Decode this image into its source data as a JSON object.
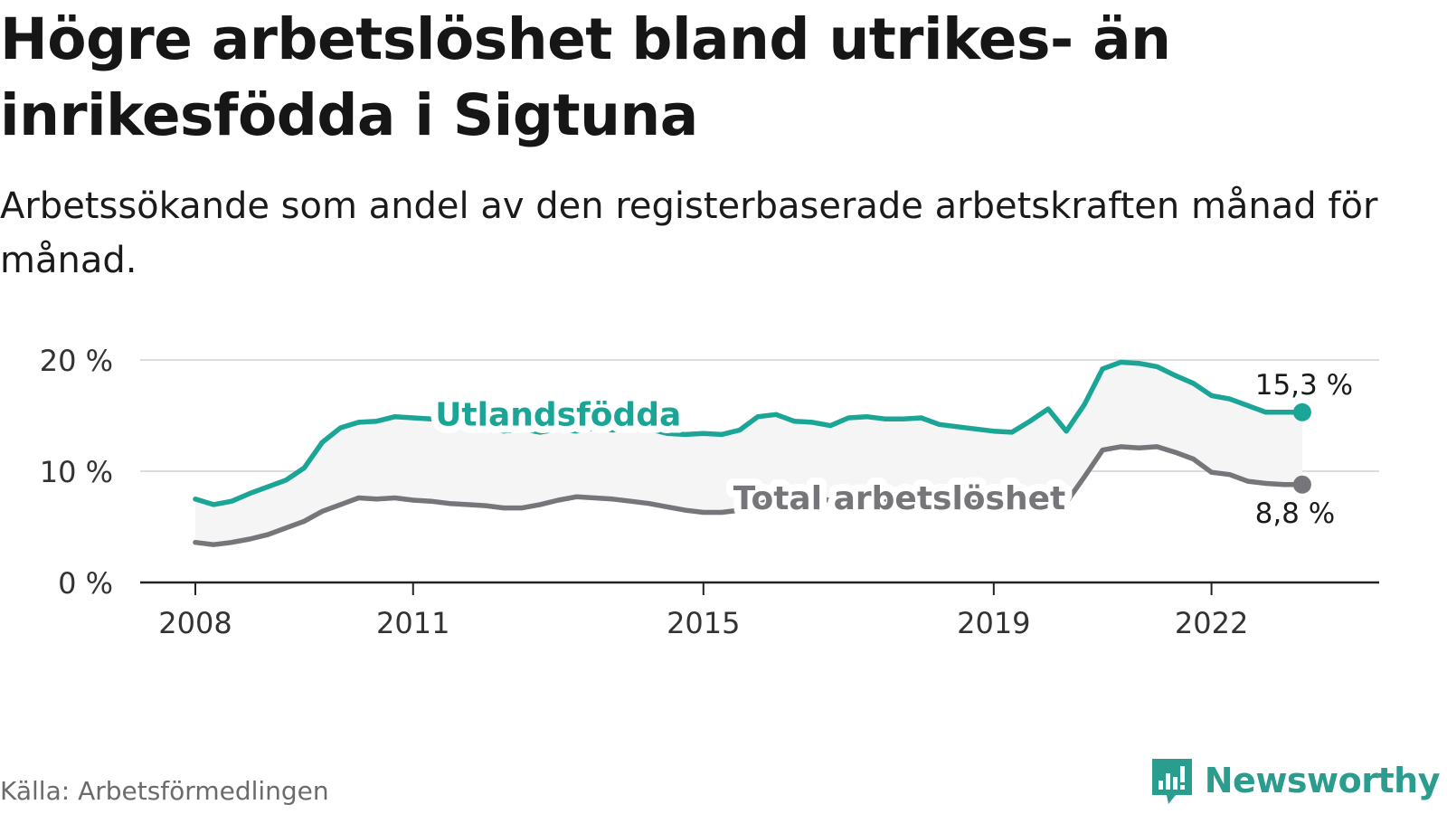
{
  "title": "Högre arbetslöshet bland utrikes- än inrikesfödda i Sigtuna",
  "subtitle": "Arbetssökande som andel av den registerbaserade arbetskraften månad för månad.",
  "source": "Källa: Arbetsförmedlingen",
  "brand": {
    "name": "Newsworthy",
    "icon": "newsworthy-logo-icon"
  },
  "colors": {
    "foreign": "#1aa596",
    "total": "#76767a",
    "band": "#f5f5f5",
    "grid": "#dcdcdc",
    "axis": "#222222"
  },
  "chart_data": {
    "type": "line",
    "title": "Högre arbetslöshet bland utrikes- än inrikesfödda i Sigtuna",
    "xlabel": "",
    "ylabel": "",
    "xlim": [
      2008,
      2023.6
    ],
    "ylim": [
      0,
      20
    ],
    "x_ticks": [
      {
        "value": 2008,
        "label": "2008"
      },
      {
        "value": 2011,
        "label": "2011"
      },
      {
        "value": 2015,
        "label": "2015"
      },
      {
        "value": 2019,
        "label": "2019"
      },
      {
        "value": 2022,
        "label": "2022"
      }
    ],
    "y_ticks": [
      {
        "value": 0,
        "label": "0 %"
      },
      {
        "value": 10,
        "label": "10 %"
      },
      {
        "value": 20,
        "label": "20 %"
      }
    ],
    "series": [
      {
        "name": "Utlandsfödda",
        "label": "Utlandsfödda",
        "end_label": "15,3 %",
        "points": [
          [
            2008.0,
            7.5
          ],
          [
            2008.25,
            7.0
          ],
          [
            2008.5,
            7.3
          ],
          [
            2008.75,
            8.0
          ],
          [
            2009.0,
            8.6
          ],
          [
            2009.25,
            9.2
          ],
          [
            2009.5,
            10.3
          ],
          [
            2009.75,
            12.6
          ],
          [
            2010.0,
            13.9
          ],
          [
            2010.25,
            14.4
          ],
          [
            2010.5,
            14.5
          ],
          [
            2010.75,
            14.9
          ],
          [
            2011.0,
            14.8
          ],
          [
            2011.25,
            14.7
          ],
          [
            2011.5,
            14.3
          ],
          [
            2011.75,
            14.0
          ],
          [
            2012.0,
            14.1
          ],
          [
            2012.25,
            13.6
          ],
          [
            2012.5,
            13.8
          ],
          [
            2012.75,
            13.5
          ],
          [
            2013.0,
            13.8
          ],
          [
            2013.25,
            13.6
          ],
          [
            2013.5,
            13.9
          ],
          [
            2013.75,
            13.7
          ],
          [
            2014.0,
            13.9
          ],
          [
            2014.25,
            13.8
          ],
          [
            2014.5,
            13.4
          ],
          [
            2014.75,
            13.3
          ],
          [
            2015.0,
            13.4
          ],
          [
            2015.25,
            13.3
          ],
          [
            2015.5,
            13.7
          ],
          [
            2015.75,
            14.9
          ],
          [
            2016.0,
            15.1
          ],
          [
            2016.25,
            14.5
          ],
          [
            2016.5,
            14.4
          ],
          [
            2016.75,
            14.1
          ],
          [
            2017.0,
            14.8
          ],
          [
            2017.25,
            14.9
          ],
          [
            2017.5,
            14.7
          ],
          [
            2017.75,
            14.7
          ],
          [
            2018.0,
            14.8
          ],
          [
            2018.25,
            14.2
          ],
          [
            2018.5,
            14.0
          ],
          [
            2018.75,
            13.8
          ],
          [
            2019.0,
            13.6
          ],
          [
            2019.25,
            13.5
          ],
          [
            2019.5,
            14.5
          ],
          [
            2019.75,
            15.6
          ],
          [
            2020.0,
            13.6
          ],
          [
            2020.25,
            16.0
          ],
          [
            2020.5,
            19.2
          ],
          [
            2020.75,
            19.8
          ],
          [
            2021.0,
            19.7
          ],
          [
            2021.25,
            19.4
          ],
          [
            2021.5,
            18.6
          ],
          [
            2021.75,
            17.9
          ],
          [
            2022.0,
            16.8
          ],
          [
            2022.25,
            16.5
          ],
          [
            2022.5,
            15.9
          ],
          [
            2022.75,
            15.3
          ],
          [
            2023.0,
            15.3
          ],
          [
            2023.25,
            15.3
          ]
        ]
      },
      {
        "name": "Total arbetslöshet",
        "label": "Total arbetslöshet",
        "end_label": "8,8 %",
        "points": [
          [
            2008.0,
            3.6
          ],
          [
            2008.25,
            3.4
          ],
          [
            2008.5,
            3.6
          ],
          [
            2008.75,
            3.9
          ],
          [
            2009.0,
            4.3
          ],
          [
            2009.25,
            4.9
          ],
          [
            2009.5,
            5.5
          ],
          [
            2009.75,
            6.4
          ],
          [
            2010.0,
            7.0
          ],
          [
            2010.25,
            7.6
          ],
          [
            2010.5,
            7.5
          ],
          [
            2010.75,
            7.6
          ],
          [
            2011.0,
            7.4
          ],
          [
            2011.25,
            7.3
          ],
          [
            2011.5,
            7.1
          ],
          [
            2011.75,
            7.0
          ],
          [
            2012.0,
            6.9
          ],
          [
            2012.25,
            6.7
          ],
          [
            2012.5,
            6.7
          ],
          [
            2012.75,
            7.0
          ],
          [
            2013.0,
            7.4
          ],
          [
            2013.25,
            7.7
          ],
          [
            2013.5,
            7.6
          ],
          [
            2013.75,
            7.5
          ],
          [
            2014.0,
            7.3
          ],
          [
            2014.25,
            7.1
          ],
          [
            2014.5,
            6.8
          ],
          [
            2014.75,
            6.5
          ],
          [
            2015.0,
            6.3
          ],
          [
            2015.25,
            6.3
          ],
          [
            2015.5,
            6.5
          ],
          [
            2015.75,
            7.0
          ],
          [
            2016.0,
            7.6
          ],
          [
            2016.25,
            7.6
          ],
          [
            2016.5,
            7.5
          ],
          [
            2016.75,
            7.4
          ],
          [
            2017.0,
            7.6
          ],
          [
            2017.25,
            7.6
          ],
          [
            2017.5,
            7.4
          ],
          [
            2017.75,
            7.5
          ],
          [
            2018.0,
            7.5
          ],
          [
            2018.25,
            7.4
          ],
          [
            2018.5,
            7.3
          ],
          [
            2018.75,
            7.2
          ],
          [
            2019.0,
            7.3
          ],
          [
            2019.25,
            7.4
          ],
          [
            2019.5,
            7.9
          ],
          [
            2019.75,
            8.3
          ],
          [
            2020.0,
            7.2
          ],
          [
            2020.25,
            9.5
          ],
          [
            2020.5,
            11.9
          ],
          [
            2020.75,
            12.2
          ],
          [
            2021.0,
            12.1
          ],
          [
            2021.25,
            12.2
          ],
          [
            2021.5,
            11.7
          ],
          [
            2021.75,
            11.1
          ],
          [
            2022.0,
            9.9
          ],
          [
            2022.25,
            9.7
          ],
          [
            2022.5,
            9.1
          ],
          [
            2022.75,
            8.9
          ],
          [
            2023.0,
            8.8
          ],
          [
            2023.25,
            8.8
          ]
        ]
      }
    ],
    "annotations": [
      {
        "text": "Utlandsfödda",
        "series": "Utlandsfödda",
        "at_x": 2013.0,
        "at_y": 15.0
      },
      {
        "text": "Total arbetslöshet",
        "series": "Total arbetslöshet",
        "at_x": 2017.7,
        "at_y": 7.5
      }
    ]
  }
}
